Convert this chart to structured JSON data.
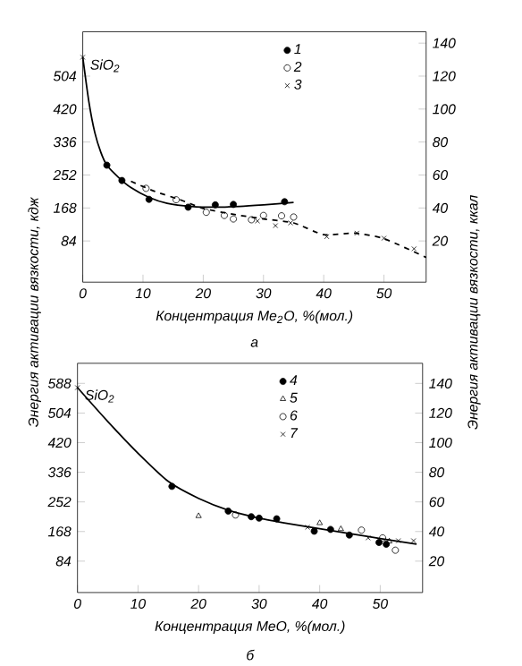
{
  "chart_data": [
    {
      "type": "scatter",
      "xlabel": "Концентрация Me$_{2}$O, %(мол.)",
      "ylabel": "Энергия активации вязкости, кдж",
      "y2label": "Энергия активации вязкости, ккал",
      "annotations": [
        {
          "text": "SiO$_{2}$",
          "x": 0,
          "y": 552
        },
        "а"
      ],
      "xlim": [
        0,
        57
      ],
      "xticks": [
        0,
        10,
        20,
        30,
        40,
        50
      ],
      "ylim": [
        -21,
        617
      ],
      "yticks": [
        84,
        168,
        252,
        336,
        420,
        504
      ],
      "y2lim": [
        -5,
        146.9
      ],
      "y2ticks": [
        20,
        40,
        60,
        80,
        100,
        120,
        140
      ],
      "legend": "top",
      "series": [
        {
          "type": "line",
          "color": "#000000",
          "line_style": "solid",
          "x": [
            0,
            1,
            2,
            3,
            4,
            6,
            8,
            11,
            14,
            18,
            22,
            26,
            30,
            35
          ],
          "values": [
            552,
            440,
            360,
            310,
            277,
            245,
            220,
            195,
            180,
            172,
            170,
            172,
            176,
            182
          ]
        },
        {
          "type": "line",
          "color": "#000000",
          "line_style": "dashed",
          "x": [
            8,
            12,
            16,
            20,
            25,
            30,
            35,
            40,
            45,
            50,
            57
          ],
          "values": [
            236,
            210,
            190,
            167,
            152,
            140,
            130,
            100,
            104,
            90,
            42
          ]
        },
        {
          "name": "1",
          "color": "#000000",
          "marker": "circle",
          "x": [
            4,
            6.5,
            11,
            17.5,
            22,
            25,
            33.5
          ],
          "values": [
            277,
            238,
            190,
            170,
            176,
            177,
            184
          ]
        },
        {
          "name": "2",
          "color": "#000000",
          "marker": "circle_open",
          "x": [
            10.5,
            15.5,
            20.5,
            23.5,
            25,
            28,
            30,
            33,
            35
          ],
          "values": [
            218,
            189,
            157,
            149,
            140,
            138,
            149,
            148,
            145
          ]
        },
        {
          "name": "3",
          "color": "#000000",
          "marker": "cross",
          "x": [
            0,
            29,
            32,
            34.5,
            40.5,
            45.5,
            50,
            55
          ],
          "values": [
            552,
            135,
            123,
            130,
            95,
            104,
            91,
            64
          ]
        }
      ]
    },
    {
      "type": "scatter",
      "xlabel": "Концентрация MeO, %(мол.)",
      "annotations": [
        {
          "text": "SiO$_{2}$",
          "x": 0,
          "y": 576
        },
        "б"
      ],
      "xlim": [
        0,
        57
      ],
      "xticks": [
        0,
        10,
        20,
        30,
        40,
        50
      ],
      "ylim": [
        -5,
        645
      ],
      "yticks": [
        84,
        168,
        252,
        336,
        420,
        504,
        588
      ],
      "y2lim": [
        -1.2,
        153.6
      ],
      "y2ticks": [
        20,
        40,
        60,
        80,
        100,
        120,
        140
      ],
      "legend": "top",
      "series": [
        {
          "type": "line",
          "color": "#000000",
          "line_style": "solid",
          "x": [
            0,
            5,
            10,
            15,
            20,
            25,
            30,
            35,
            40,
            45,
            50,
            56
          ],
          "values": [
            576,
            480,
            390,
            310,
            262,
            228,
            206,
            190,
            176,
            162,
            148,
            132
          ]
        },
        {
          "name": "4",
          "color": "#000000",
          "marker": "circle",
          "x": [
            15.6,
            24.9,
            28.7,
            30,
            32.9,
            39.1,
            41.8,
            44.9,
            49.8,
            51
          ],
          "values": [
            296,
            226,
            210,
            206,
            204,
            169,
            174,
            158,
            137,
            132
          ]
        },
        {
          "name": "5",
          "color": "#000000",
          "marker": "triangle_open",
          "x": [
            20,
            40,
            43.5,
            51.5
          ],
          "values": [
            212,
            192,
            175,
            140
          ]
        },
        {
          "name": "6",
          "color": "#000000",
          "marker": "circle_open",
          "x": [
            26.1,
            46.9,
            50.4,
            52.5
          ],
          "values": [
            215,
            172,
            150,
            115
          ]
        },
        {
          "name": "7",
          "color": "#000000",
          "marker": "cross",
          "x": [
            0,
            38,
            48,
            53,
            55.5
          ],
          "values": [
            576,
            180,
            150,
            142,
            142
          ]
        }
      ]
    }
  ]
}
